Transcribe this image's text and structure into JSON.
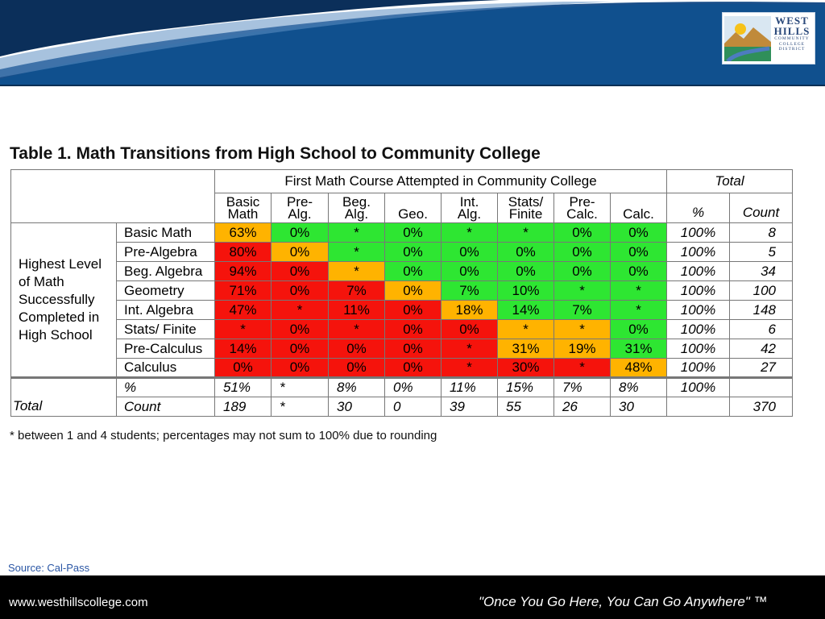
{
  "logo": {
    "line1": "WEST",
    "line2": "HILLS",
    "line3": "COMMUNITY",
    "line4": "COLLEGE",
    "line5": "DISTRICT"
  },
  "table": {
    "title": "Table 1. Math Transitions from High School to Community College",
    "group_header": "First Math Course Attempted in Community College",
    "total_header": "Total",
    "columns": [
      [
        "Basic",
        "Math"
      ],
      [
        "Pre-",
        "Alg."
      ],
      [
        "Beg.",
        "Alg."
      ],
      [
        "",
        "Geo."
      ],
      [
        "Int.",
        "Alg."
      ],
      [
        "Stats/",
        "Finite"
      ],
      [
        "Pre-",
        "Calc."
      ],
      [
        "",
        "Calc."
      ]
    ],
    "total_columns": [
      "%",
      "Count"
    ],
    "side_label": "Highest Level of Math Successfully Completed in High School",
    "rows": [
      {
        "label": "Basic Math",
        "cells": [
          [
            "63%",
            "o"
          ],
          [
            "0%",
            "g"
          ],
          [
            "*",
            "g"
          ],
          [
            "0%",
            "g"
          ],
          [
            "*",
            "g"
          ],
          [
            "*",
            "g"
          ],
          [
            "0%",
            "g"
          ],
          [
            "0%",
            "g"
          ]
        ],
        "pct": "100%",
        "count": "8"
      },
      {
        "label": "Pre-Algebra",
        "cells": [
          [
            "80%",
            "r"
          ],
          [
            "0%",
            "o"
          ],
          [
            "*",
            "g"
          ],
          [
            "0%",
            "g"
          ],
          [
            "0%",
            "g"
          ],
          [
            "0%",
            "g"
          ],
          [
            "0%",
            "g"
          ],
          [
            "0%",
            "g"
          ]
        ],
        "pct": "100%",
        "count": "5"
      },
      {
        "label": "Beg. Algebra",
        "cells": [
          [
            "94%",
            "r"
          ],
          [
            "0%",
            "r"
          ],
          [
            "*",
            "o"
          ],
          [
            "0%",
            "g"
          ],
          [
            "0%",
            "g"
          ],
          [
            "0%",
            "g"
          ],
          [
            "0%",
            "g"
          ],
          [
            "0%",
            "g"
          ]
        ],
        "pct": "100%",
        "count": "34"
      },
      {
        "label": "Geometry",
        "cells": [
          [
            "71%",
            "r"
          ],
          [
            "0%",
            "r"
          ],
          [
            "7%",
            "r"
          ],
          [
            "0%",
            "o"
          ],
          [
            "7%",
            "g"
          ],
          [
            "10%",
            "g"
          ],
          [
            "*",
            "g"
          ],
          [
            "*",
            "g"
          ]
        ],
        "pct": "100%",
        "count": "100"
      },
      {
        "label": "Int. Algebra",
        "cells": [
          [
            "47%",
            "r"
          ],
          [
            "*",
            "r"
          ],
          [
            "11%",
            "r"
          ],
          [
            "0%",
            "r"
          ],
          [
            "18%",
            "o"
          ],
          [
            "14%",
            "g"
          ],
          [
            "7%",
            "g"
          ],
          [
            "*",
            "g"
          ]
        ],
        "pct": "100%",
        "count": "148"
      },
      {
        "label": "Stats/ Finite",
        "cells": [
          [
            "*",
            "r"
          ],
          [
            "0%",
            "r"
          ],
          [
            "*",
            "r"
          ],
          [
            "0%",
            "r"
          ],
          [
            "0%",
            "r"
          ],
          [
            "*",
            "o"
          ],
          [
            "*",
            "o"
          ],
          [
            "0%",
            "g"
          ]
        ],
        "pct": "100%",
        "count": "6"
      },
      {
        "label": "Pre-Calculus",
        "cells": [
          [
            "14%",
            "r"
          ],
          [
            "0%",
            "r"
          ],
          [
            "0%",
            "r"
          ],
          [
            "0%",
            "r"
          ],
          [
            "*",
            "r"
          ],
          [
            "31%",
            "o"
          ],
          [
            "19%",
            "o"
          ],
          [
            "31%",
            "g"
          ]
        ],
        "pct": "100%",
        "count": "42"
      },
      {
        "label": "Calculus",
        "cells": [
          [
            "0%",
            "r"
          ],
          [
            "0%",
            "r"
          ],
          [
            "0%",
            "r"
          ],
          [
            "0%",
            "r"
          ],
          [
            "*",
            "r"
          ],
          [
            "30%",
            "r"
          ],
          [
            "*",
            "r"
          ],
          [
            "48%",
            "o"
          ]
        ],
        "pct": "100%",
        "count": "27"
      }
    ],
    "total_label": "Total",
    "total_rows": [
      {
        "label": "%",
        "cells": [
          "51%",
          "*",
          "8%",
          "0%",
          "11%",
          "15%",
          "7%",
          "8%"
        ],
        "pct": "100%",
        "count": ""
      },
      {
        "label": "Count",
        "cells": [
          "189",
          "*",
          "30",
          "0",
          "39",
          "55",
          "26",
          "30"
        ],
        "pct": "",
        "count": "370"
      }
    ],
    "colors": {
      "g": "#2ee632",
      "o": "#ffb300",
      "r": "#f5130c"
    }
  },
  "footnote": "* between 1 and 4 students; percentages may not sum to 100% due to rounding",
  "source": "Source: Cal-Pass",
  "footer": {
    "url": "www.westhillscollege.com",
    "tagline": "\"Once You Go Here, You Can Go Anywhere\" ™"
  }
}
